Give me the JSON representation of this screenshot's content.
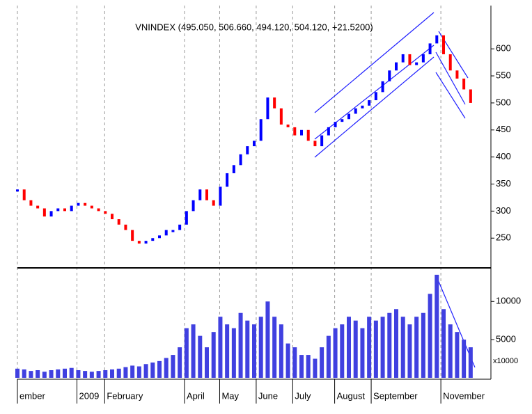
{
  "chart_data": {
    "type": "candlestick",
    "title": "VNINDEX (495.050, 506.660, 494.120, 504.120, +21.5200)",
    "volume_unit_label": "x10000",
    "up_color": "#0000ff",
    "down_color": "#ff0000",
    "volume_color": "#4040e0",
    "grid": true,
    "x": [
      0,
      1,
      2,
      3,
      4,
      5,
      6,
      7,
      8,
      9,
      10,
      11,
      12,
      13,
      14,
      15,
      16,
      17,
      18,
      19,
      20,
      21,
      22,
      23,
      24,
      25,
      26,
      27,
      28,
      29,
      30,
      31,
      32,
      33,
      34,
      35,
      36,
      37,
      38,
      39,
      40,
      41,
      42,
      43,
      44,
      45,
      46,
      47,
      48,
      49,
      50,
      51,
      52,
      53,
      54,
      55,
      56,
      57,
      58,
      59,
      60,
      61,
      62,
      63,
      64,
      65,
      66,
      67
    ],
    "xlim": [
      0,
      70
    ],
    "xticks": [
      {
        "value": 0,
        "label": "ember"
      },
      {
        "value": 8.8,
        "label": "2009"
      },
      {
        "value": 12.9,
        "label": "February"
      },
      {
        "value": 24.7,
        "label": "April"
      },
      {
        "value": 29.9,
        "label": "May"
      },
      {
        "value": 35.3,
        "label": "June"
      },
      {
        "value": 40.7,
        "label": "July"
      },
      {
        "value": 46.9,
        "label": "August"
      },
      {
        "value": 52.3,
        "label": "September"
      },
      {
        "value": 62.6,
        "label": "November"
      }
    ],
    "series": [
      {
        "name": "VNINDEX",
        "values": [
          340,
          320,
          310,
          305,
          290,
          300,
          305,
          300,
          310,
          315,
          310,
          305,
          300,
          295,
          285,
          275,
          265,
          245,
          240,
          245,
          250,
          255,
          265,
          265,
          275,
          300,
          320,
          340,
          320,
          310,
          345,
          370,
          385,
          405,
          420,
          430,
          470,
          510,
          490,
          460,
          455,
          440,
          450,
          430,
          420,
          440,
          455,
          465,
          470,
          480,
          490,
          495,
          505,
          520,
          540,
          560,
          575,
          590,
          570,
          575,
          590,
          610,
          625,
          590,
          560,
          545,
          525,
          500
        ]
      },
      {
        "name": "Volume",
        "axis": "y2",
        "values": [
          1200,
          1100,
          900,
          1000,
          800,
          1000,
          1100,
          1200,
          1300,
          1000,
          900,
          800,
          900,
          1000,
          1100,
          1200,
          1400,
          1600,
          1500,
          1800,
          2000,
          2200,
          2600,
          3000,
          4000,
          6500,
          7000,
          5500,
          4000,
          6000,
          8000,
          7000,
          6500,
          8500,
          7500,
          7000,
          8000,
          10000,
          8000,
          7000,
          4500,
          4000,
          3000,
          3000,
          2500,
          4000,
          5500,
          6500,
          7000,
          8000,
          7500,
          6500,
          8000,
          7500,
          8000,
          8500,
          9000,
          8000,
          7000,
          8000,
          8500,
          11000,
          13500,
          9000,
          7000,
          6000,
          5000,
          4000
        ]
      }
    ],
    "ylim": [
      195,
      680
    ],
    "yticks": [
      250,
      300,
      350,
      400,
      450,
      500,
      550,
      600
    ],
    "y2lim": [
      0,
      14400
    ],
    "y2ticks": [
      5000,
      10000
    ]
  }
}
